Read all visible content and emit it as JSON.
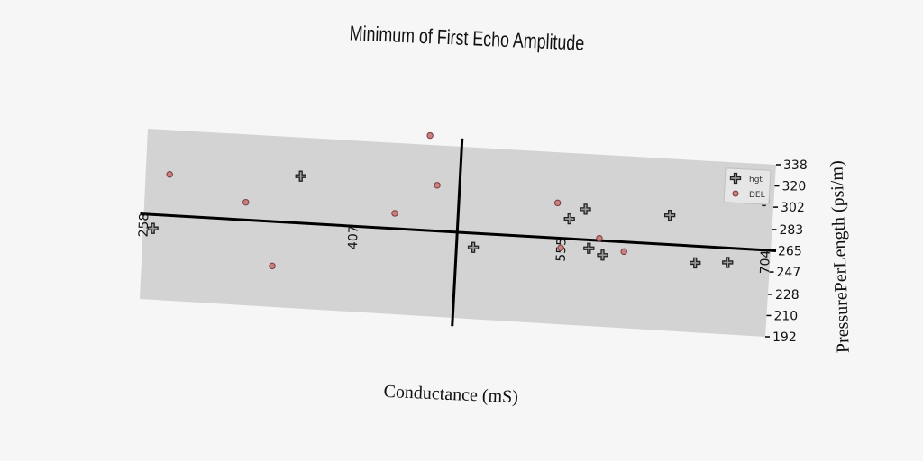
{
  "chart_data": {
    "type": "scatter",
    "title": "Minimum of First Echo Amplitude",
    "xlabel": "Conductance (mS)",
    "ylabel": "PressurePerLength (psi/m)",
    "xlim": [
      258,
      704
    ],
    "ylim": [
      192,
      338
    ],
    "x_ticks": [
      "258",
      "407",
      "555",
      "704"
    ],
    "y_ticks": [
      "192",
      "210",
      "228",
      "247",
      "265",
      "283",
      "302",
      "320",
      "338"
    ],
    "crosshair": {
      "x": 481,
      "y": 265
    },
    "grid": false,
    "legend_position": "top-right",
    "series": [
      {
        "name": "hgt",
        "marker": "plus",
        "color": "#9a9a9a",
        "points": [
          [
            265,
            253
          ],
          [
            368,
            305
          ],
          [
            493,
            253
          ],
          [
            560,
            282
          ],
          [
            571,
            291
          ],
          [
            575,
            258
          ],
          [
            585,
            253
          ],
          [
            631,
            290
          ],
          [
            651,
            251
          ],
          [
            674,
            253
          ],
          [
            697,
            307
          ]
        ]
      },
      {
        "name": "DEL",
        "marker": "circle",
        "color": "#c98080",
        "points": [
          [
            275,
            300
          ],
          [
            330,
            280
          ],
          [
            351,
            227
          ],
          [
            436,
            278
          ],
          [
            458,
            346
          ],
          [
            465,
            304
          ],
          [
            551,
            295
          ],
          [
            555,
            257
          ],
          [
            582,
            267
          ],
          [
            600,
            257
          ]
        ]
      }
    ]
  }
}
